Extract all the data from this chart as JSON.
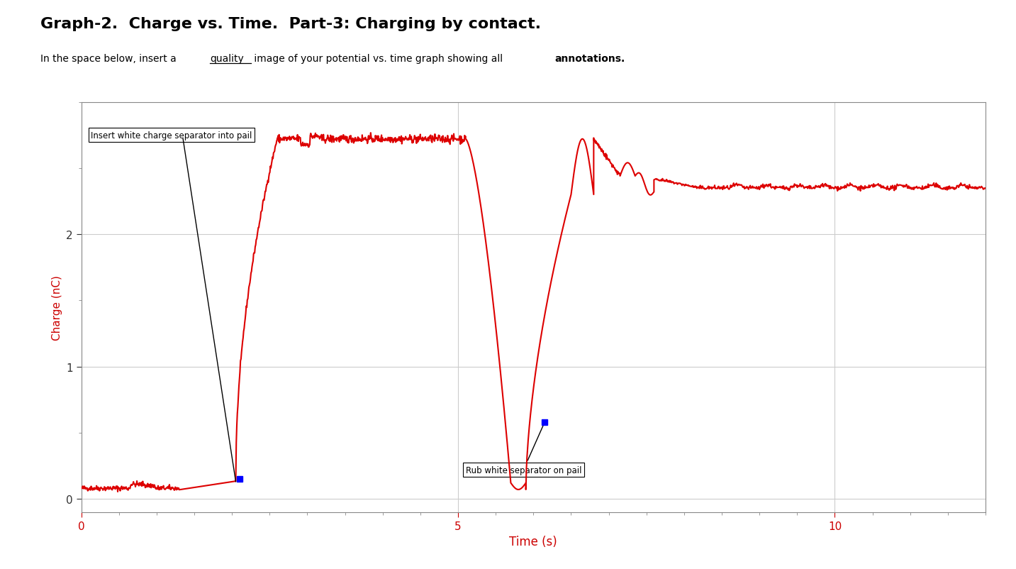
{
  "title": "Graph-2.  Charge vs. Time.  Part-3: Charging by contact.",
  "subtitle_pre": "In the space below, insert a ",
  "subtitle_underline": "quality",
  "subtitle_post": " image of your potential vs. time graph showing all ",
  "subtitle_bold": "annotations.",
  "xlabel": "Time (s)",
  "ylabel": "Charge (nC)",
  "xlim": [
    0,
    12
  ],
  "ylim": [
    -0.1,
    3.0
  ],
  "yticks": [
    0,
    1,
    2
  ],
  "xticks": [
    0,
    5,
    10
  ],
  "line_color": "#dd0000",
  "bg_color": "#ffffff",
  "grid_color": "#cccccc",
  "annotation1_text": "Insert white charge separator into pail",
  "annotation2_text": "Rub white separator on pail",
  "blue_dot1": [
    2.1,
    0.15
  ],
  "blue_dot2": [
    6.15,
    0.58
  ]
}
